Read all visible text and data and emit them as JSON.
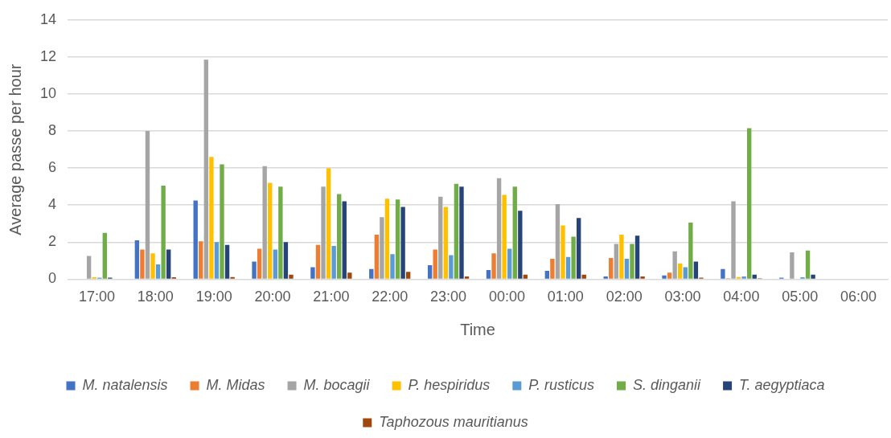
{
  "chart_data": {
    "type": "bar",
    "xlabel": "Time",
    "ylabel": "Average passe per hour",
    "categories": [
      "17:00",
      "18:00",
      "19:00",
      "20:00",
      "21:00",
      "22:00",
      "23:00",
      "00:00",
      "01:00",
      "02:00",
      "03:00",
      "04:00",
      "05:00",
      "06:00"
    ],
    "series": [
      {
        "name": "M. natalensis",
        "color": "#4472c4",
        "values": [
          0,
          2.1,
          4.25,
          0.95,
          0.65,
          0.55,
          0.75,
          0.5,
          0.45,
          0.15,
          0.2,
          0.55,
          0.08,
          0
        ]
      },
      {
        "name": "M. Midas",
        "color": "#ed7d31",
        "values": [
          0,
          1.6,
          2.05,
          1.65,
          1.85,
          2.4,
          1.6,
          1.4,
          1.1,
          1.15,
          0.35,
          0.05,
          0,
          0
        ]
      },
      {
        "name": "M. bocagii",
        "color": "#a5a5a5",
        "values": [
          1.25,
          8.0,
          11.85,
          6.1,
          5.0,
          3.35,
          4.45,
          5.45,
          4.05,
          1.9,
          1.5,
          4.2,
          1.45,
          0
        ]
      },
      {
        "name": "P. hespiridus",
        "color": "#ffc000",
        "values": [
          0.1,
          1.4,
          6.6,
          5.2,
          6.0,
          4.35,
          3.9,
          4.55,
          2.9,
          2.4,
          0.85,
          0.12,
          0,
          0
        ]
      },
      {
        "name": "P. rusticus",
        "color": "#5b9bd5",
        "values": [
          0.08,
          0.8,
          2.0,
          1.6,
          1.8,
          1.35,
          1.3,
          1.65,
          1.2,
          1.1,
          0.65,
          0.15,
          0.1,
          0
        ]
      },
      {
        "name": "S. dinganii",
        "color": "#70ad47",
        "values": [
          2.5,
          5.05,
          6.2,
          5.0,
          4.6,
          4.3,
          5.15,
          5.0,
          2.3,
          1.9,
          3.05,
          8.15,
          1.55,
          0
        ]
      },
      {
        "name": "T. aegyptiaca",
        "color": "#264478",
        "values": [
          0.08,
          1.6,
          1.85,
          2.0,
          4.2,
          3.9,
          5.0,
          3.7,
          3.3,
          2.35,
          0.95,
          0.25,
          0.25,
          0
        ]
      },
      {
        "name": "Taphozous mauritianus",
        "color": "#9e480e",
        "values": [
          0,
          0.1,
          0.12,
          0.25,
          0.35,
          0.4,
          0.15,
          0.25,
          0.25,
          0.15,
          0.08,
          0.05,
          0,
          0
        ]
      }
    ],
    "ylim": [
      0,
      14
    ],
    "yticks": [
      0,
      2,
      4,
      6,
      8,
      10,
      12,
      14
    ],
    "grid": "y",
    "legend": "bottom"
  }
}
